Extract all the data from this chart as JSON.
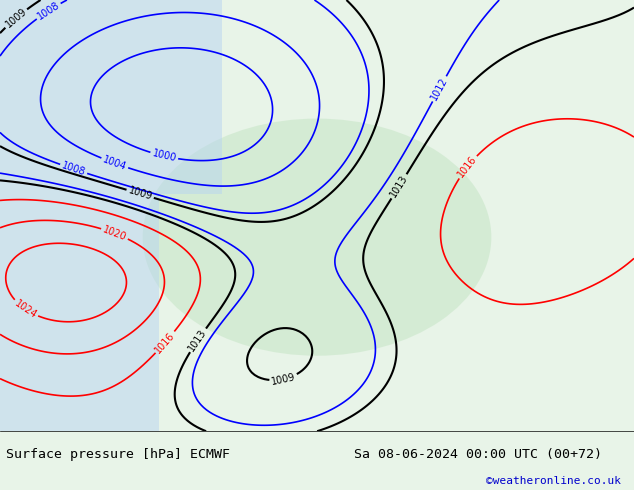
{
  "title_left": "Surface pressure [hPa] ECMWF",
  "title_right": "Sa 08-06-2024 00:00 UTC (00+72)",
  "credit": "©weatheronline.co.uk",
  "bg_color": "#e8f4e8",
  "land_color": "#c8e6c8",
  "water_color": "#b8d4f0",
  "fig_width": 6.34,
  "fig_height": 4.9,
  "dpi": 100,
  "bottom_bar_color": "#ffffff",
  "bottom_bar_height": 0.12,
  "title_fontsize": 9.5,
  "credit_color": "#0000cc",
  "credit_fontsize": 8
}
